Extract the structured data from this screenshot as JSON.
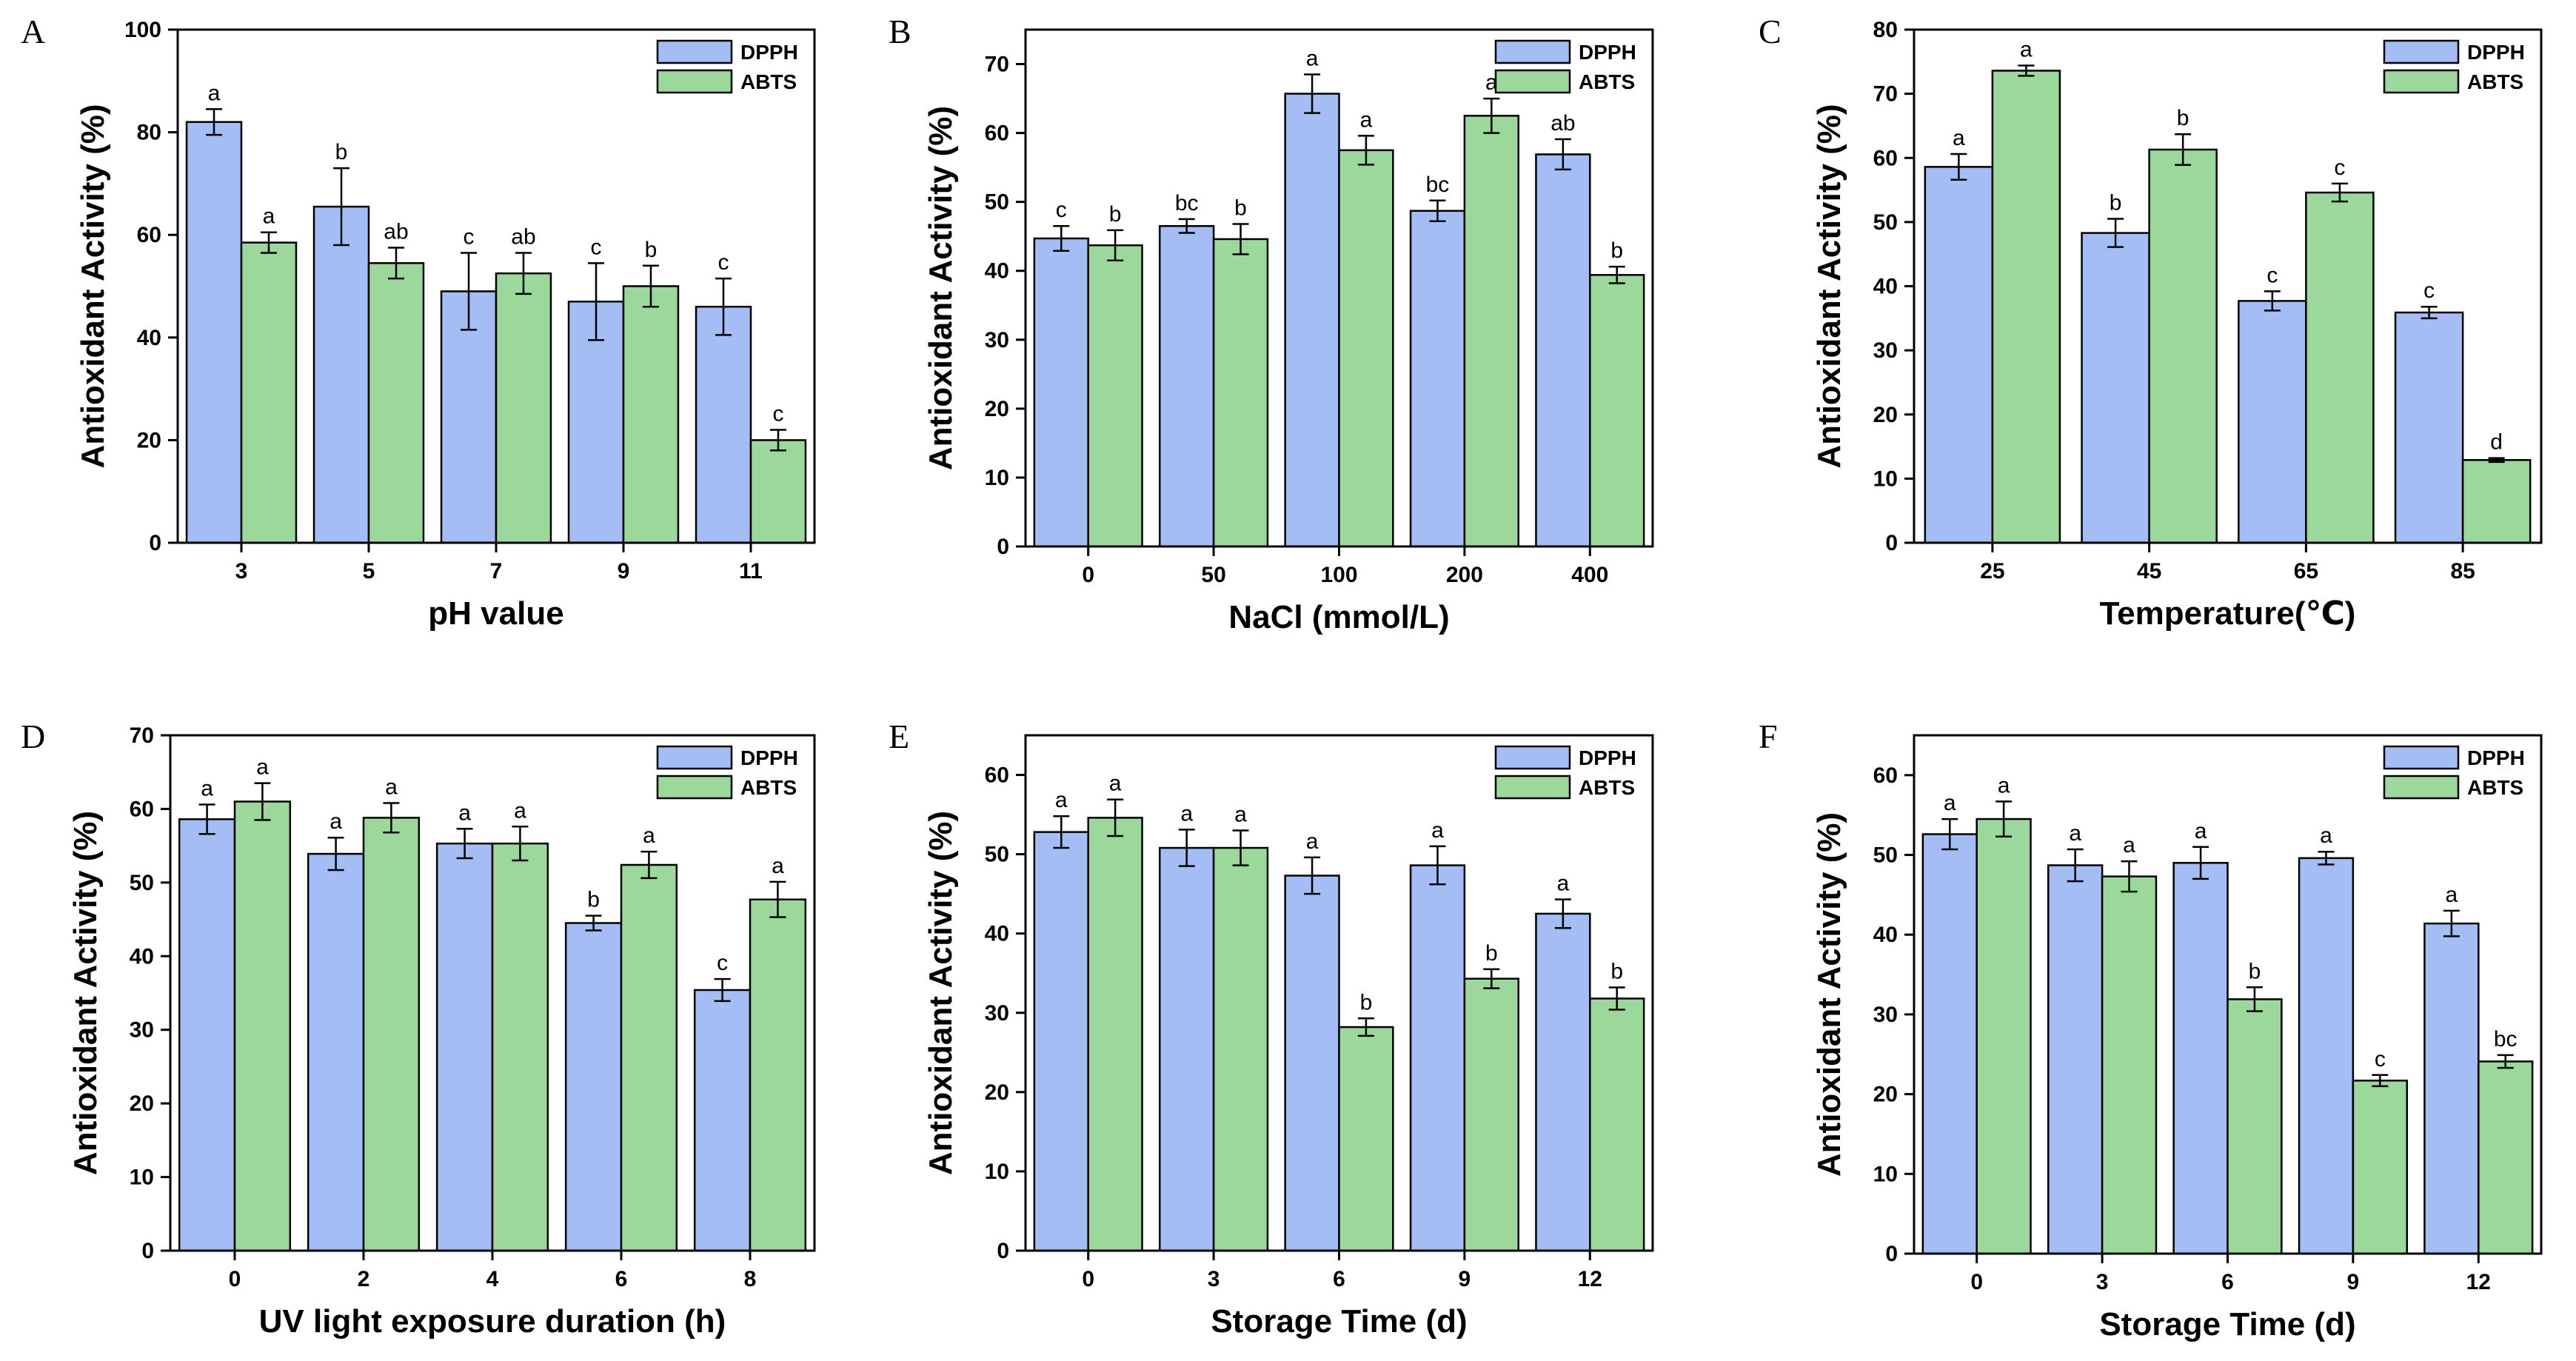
{
  "colors": {
    "DPPH": "#a4bdf4",
    "ABTS": "#9cd89c"
  },
  "legend": [
    "DPPH",
    "ABTS"
  ],
  "ylabel": "Antioxidant Activity (%)",
  "chart_data": [
    {
      "type": "bar",
      "panel": "A",
      "xlabel": "pH value",
      "ylabel": "Antioxidant Activity (%)",
      "ylim": [
        0,
        100
      ],
      "yticks": [
        0,
        20,
        40,
        60,
        80,
        100
      ],
      "categories": [
        "3",
        "5",
        "7",
        "9",
        "11"
      ],
      "series": [
        {
          "name": "DPPH",
          "values": [
            82,
            65.5,
            49,
            47,
            46
          ],
          "errors": [
            2.5,
            7.5,
            7.5,
            7.5,
            5.5
          ],
          "letters": [
            "a",
            "b",
            "c",
            "c",
            "c"
          ]
        },
        {
          "name": "ABTS",
          "values": [
            58.5,
            54.5,
            52.5,
            50,
            20
          ],
          "errors": [
            2,
            3,
            4,
            4,
            2
          ],
          "letters": [
            "a",
            "ab",
            "ab",
            "b",
            "c"
          ]
        }
      ]
    },
    {
      "type": "bar",
      "panel": "B",
      "xlabel": "NaCl (mmol/L)",
      "ylabel": "Antioxidant Activity (%)",
      "ylim": [
        0,
        75
      ],
      "yticks": [
        0,
        10,
        20,
        30,
        40,
        50,
        60,
        70
      ],
      "categories": [
        "0",
        "50",
        "100",
        "200",
        "400"
      ],
      "series": [
        {
          "name": "DPPH",
          "values": [
            44.7,
            46.5,
            65.7,
            48.7,
            56.9
          ],
          "errors": [
            1.8,
            1,
            2.8,
            1.5,
            2.2
          ],
          "letters": [
            "c",
            "bc",
            "a",
            "bc",
            "ab"
          ]
        },
        {
          "name": "ABTS",
          "values": [
            43.7,
            44.6,
            57.5,
            62.5,
            39.4
          ],
          "errors": [
            2.2,
            2.2,
            2.1,
            2.5,
            1.2
          ],
          "letters": [
            "b",
            "b",
            "a",
            "a",
            "b"
          ]
        }
      ]
    },
    {
      "type": "bar",
      "panel": "C",
      "xlabel": "Temperature(℃)",
      "ylabel": "Antioxidant Activity (%)",
      "ylim": [
        0,
        80
      ],
      "yticks": [
        0,
        10,
        20,
        30,
        40,
        50,
        60,
        70,
        80
      ],
      "categories": [
        "25",
        "45",
        "65",
        "85"
      ],
      "series": [
        {
          "name": "DPPH",
          "values": [
            58.6,
            48.3,
            37.7,
            35.9
          ],
          "errors": [
            2,
            2.2,
            1.5,
            0.9
          ],
          "letters": [
            "a",
            "b",
            "c",
            "c"
          ]
        },
        {
          "name": "ABTS",
          "values": [
            73.6,
            61.3,
            54.6,
            12.9
          ],
          "errors": [
            0.8,
            2.4,
            1.4,
            0.3
          ],
          "letters": [
            "a",
            "b",
            "c",
            "d"
          ]
        }
      ]
    },
    {
      "type": "bar",
      "panel": "D",
      "xlabel": "UV light exposure duration (h)",
      "ylabel": "Antioxidant Activity (%)",
      "ylim": [
        0,
        70
      ],
      "yticks": [
        0,
        10,
        20,
        30,
        40,
        50,
        60,
        70
      ],
      "categories": [
        "0",
        "2",
        "4",
        "6",
        "8"
      ],
      "series": [
        {
          "name": "DPPH",
          "values": [
            58.6,
            53.9,
            55.3,
            44.5,
            35.4
          ],
          "errors": [
            2,
            2.2,
            2,
            1,
            1.5
          ],
          "letters": [
            "a",
            "a",
            "a",
            "b",
            "c"
          ]
        },
        {
          "name": "ABTS",
          "values": [
            61,
            58.8,
            55.3,
            52.4,
            47.7
          ],
          "errors": [
            2.5,
            2,
            2.3,
            1.8,
            2.4
          ],
          "letters": [
            "a",
            "a",
            "a",
            "a",
            "a"
          ]
        }
      ]
    },
    {
      "type": "bar",
      "panel": "E",
      "xlabel": "Storage Time (d)",
      "ylabel": "Antioxidant Activity (%)",
      "ylim": [
        0,
        65
      ],
      "yticks": [
        0,
        10,
        20,
        30,
        40,
        50,
        60
      ],
      "categories": [
        "0",
        "3",
        "6",
        "9",
        "12"
      ],
      "series": [
        {
          "name": "DPPH",
          "values": [
            52.8,
            50.8,
            47.3,
            48.6,
            42.5
          ],
          "errors": [
            2,
            2.3,
            2.3,
            2.4,
            1.8
          ],
          "letters": [
            "a",
            "a",
            "a",
            "a",
            "a"
          ]
        },
        {
          "name": "ABTS",
          "values": [
            54.6,
            50.8,
            28.2,
            34.3,
            31.8
          ],
          "errors": [
            2.3,
            2.2,
            1.1,
            1.2,
            1.4
          ],
          "letters": [
            "a",
            "a",
            "b",
            "b",
            "b"
          ]
        }
      ]
    },
    {
      "type": "bar",
      "panel": "F",
      "xlabel": "Storage Time (d)",
      "ylabel": "Antioxidant Activity (%)",
      "ylim": [
        0,
        65
      ],
      "yticks": [
        0,
        10,
        20,
        30,
        40,
        50,
        60
      ],
      "categories": [
        "0",
        "3",
        "6",
        "9",
        "12"
      ],
      "series": [
        {
          "name": "DPPH",
          "values": [
            52.6,
            48.7,
            49,
            49.6,
            41.4
          ],
          "errors": [
            1.9,
            2,
            2,
            0.8,
            1.6
          ],
          "letters": [
            "a",
            "a",
            "a",
            "a",
            "a"
          ]
        },
        {
          "name": "ABTS",
          "values": [
            54.5,
            47.3,
            31.9,
            21.7,
            24.1
          ],
          "errors": [
            2.2,
            1.9,
            1.5,
            0.7,
            0.8
          ],
          "letters": [
            "a",
            "a",
            "b",
            "c",
            "bc"
          ]
        }
      ]
    }
  ]
}
